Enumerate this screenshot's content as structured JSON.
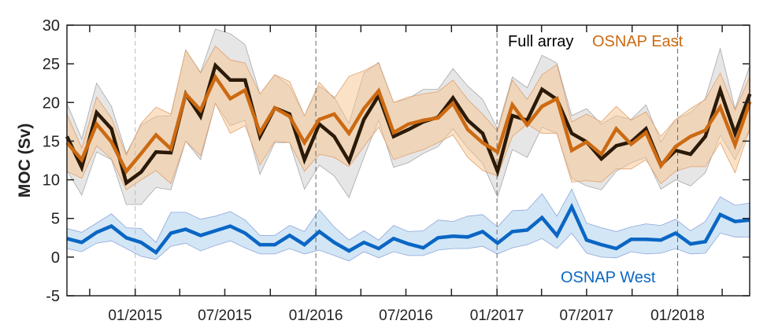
{
  "chart_data": {
    "type": "line",
    "title": "",
    "xlabel": "",
    "ylabel": "MOC (Sv)",
    "ylim": [
      -5,
      30
    ],
    "yticks": [
      "-5",
      "0",
      "5",
      "10",
      "15",
      "20",
      "25",
      "30"
    ],
    "xlim": [
      "2014-08-16",
      "2018-05-27"
    ],
    "xtick_labels": [
      "01/2015",
      "07/2015",
      "01/2016",
      "07/2016",
      "01/2017",
      "07/2017",
      "01/2018"
    ],
    "xtick_dates": [
      "2015-01-01",
      "2015-07-01",
      "2016-01-01",
      "2016-07-01",
      "2017-01-01",
      "2017-07-01",
      "2018-01-01"
    ],
    "minor_tick_interval_months": 3,
    "year_gridlines": "dashed vertical at each January",
    "grid": false,
    "x": [
      "2014-08-16",
      "2014-09-15",
      "2014-10-15",
      "2014-11-14",
      "2014-12-14",
      "2015-01-13",
      "2015-02-12",
      "2015-03-14",
      "2015-04-13",
      "2015-05-13",
      "2015-06-12",
      "2015-07-12",
      "2015-08-11",
      "2015-09-10",
      "2015-10-10",
      "2015-11-09",
      "2015-12-09",
      "2016-01-08",
      "2016-02-07",
      "2016-03-08",
      "2016-04-07",
      "2016-05-07",
      "2016-06-06",
      "2016-07-06",
      "2016-08-05",
      "2016-09-04",
      "2016-10-04",
      "2016-11-03",
      "2016-12-03",
      "2017-01-02",
      "2017-02-01",
      "2017-03-03",
      "2017-04-02",
      "2017-05-02",
      "2017-06-01",
      "2017-07-01",
      "2017-07-31",
      "2017-08-30",
      "2017-09-29",
      "2017-10-29",
      "2017-11-28",
      "2017-12-28",
      "2018-01-27",
      "2018-02-26",
      "2018-03-28",
      "2018-04-27",
      "2018-05-27"
    ],
    "series": [
      {
        "name": "Full array",
        "color": "#2b1a08",
        "band_color": "#d9d9d9",
        "values": [
          15.6,
          11.6,
          18.7,
          16.6,
          9.6,
          11.0,
          13.6,
          13.5,
          21.1,
          18.2,
          24.8,
          22.9,
          22.9,
          15.6,
          19.3,
          18.5,
          12.6,
          17.2,
          15.6,
          12.4,
          17.8,
          20.9,
          15.6,
          16.5,
          17.5,
          18.1,
          20.6,
          17.7,
          16.0,
          11.1,
          18.3,
          17.7,
          21.7,
          20.4,
          16.0,
          14.9,
          12.7,
          14.4,
          14.9,
          16.6,
          11.9,
          13.8,
          13.3,
          15.6,
          21.6,
          16.0,
          21.1
        ],
        "upper": [
          19.9,
          15.3,
          22.5,
          19.5,
          13.4,
          17.1,
          18.2,
          18.3,
          26.8,
          23.9,
          29.5,
          28.9,
          27.5,
          21.1,
          23.6,
          22.1,
          18.3,
          22.1,
          20.7,
          17.3,
          23.8,
          25.2,
          20.0,
          20.5,
          21.7,
          21.7,
          24.4,
          22.1,
          20.4,
          16.6,
          23.3,
          21.9,
          26.1,
          25.1,
          18.3,
          19.2,
          17.2,
          18.3,
          17.8,
          19.7,
          14.9,
          17.8,
          18.7,
          20.5,
          27.0,
          19.2,
          24.8
        ],
        "lower": [
          11.2,
          8.0,
          13.6,
          12.6,
          6.8,
          6.8,
          9.0,
          8.7,
          15.0,
          12.6,
          19.9,
          17.0,
          17.7,
          10.7,
          14.8,
          14.8,
          8.8,
          11.9,
          10.5,
          7.7,
          12.9,
          17.7,
          11.6,
          12.2,
          13.4,
          14.3,
          16.6,
          14.1,
          12.1,
          7.8,
          13.9,
          12.9,
          16.8,
          16.0,
          10.2,
          9.2,
          8.7,
          11.1,
          12.2,
          12.9,
          8.8,
          10.0,
          9.2,
          10.9,
          15.8,
          12.6,
          16.6
        ]
      },
      {
        "name": "OSNAP East",
        "color": "#cc6a12",
        "band_color": "#f8c690",
        "values": [
          14.8,
          12.6,
          17.2,
          14.9,
          11.1,
          13.4,
          15.8,
          14.0,
          21.1,
          19.0,
          23.3,
          20.5,
          21.6,
          16.1,
          19.3,
          18.2,
          14.8,
          17.8,
          18.5,
          16.0,
          19.2,
          21.5,
          16.1,
          17.2,
          17.7,
          18.0,
          19.9,
          16.5,
          14.8,
          13.6,
          19.7,
          17.1,
          19.5,
          20.5,
          13.8,
          14.9,
          13.3,
          16.6,
          14.6,
          16.1,
          11.8,
          14.3,
          15.6,
          16.4,
          19.4,
          14.5,
          20.1
        ],
        "upper": [
          18.5,
          14.1,
          20.7,
          18.0,
          13.2,
          17.3,
          19.4,
          18.5,
          26.8,
          23.8,
          27.3,
          25.5,
          25.1,
          21.1,
          23.6,
          22.7,
          18.3,
          22.6,
          20.5,
          23.4,
          24.1,
          25.1,
          20.0,
          20.7,
          21.1,
          21.4,
          22.9,
          20.4,
          18.5,
          16.3,
          22.9,
          20.4,
          23.6,
          24.9,
          17.5,
          18.5,
          17.5,
          19.5,
          17.7,
          18.8,
          15.6,
          17.8,
          19.2,
          20.4,
          23.8,
          19.0,
          23.4
        ],
        "lower": [
          11.1,
          10.2,
          14.4,
          12.7,
          8.7,
          10.0,
          11.2,
          9.5,
          15.0,
          13.1,
          19.9,
          16.0,
          17.0,
          11.9,
          15.0,
          14.8,
          11.1,
          13.3,
          12.9,
          11.7,
          14.3,
          16.8,
          12.6,
          13.3,
          13.9,
          14.8,
          15.8,
          12.9,
          11.2,
          10.5,
          15.6,
          17.2,
          16.0,
          16.0,
          9.7,
          9.9,
          9.7,
          11.4,
          11.4,
          12.6,
          9.5,
          11.1,
          11.7,
          11.7,
          14.8,
          10.9,
          16.6
        ]
      },
      {
        "name": "OSNAP West",
        "color": "#0a66c4",
        "band_color": "#a8cdee",
        "values": [
          2.4,
          1.9,
          3.2,
          4.0,
          2.5,
          1.9,
          0.6,
          3.1,
          3.6,
          2.8,
          3.4,
          4.0,
          3.1,
          1.6,
          1.6,
          2.8,
          1.6,
          3.3,
          1.9,
          0.8,
          1.9,
          1.1,
          2.4,
          1.7,
          1.2,
          2.5,
          2.7,
          2.6,
          3.3,
          1.8,
          3.3,
          3.5,
          5.1,
          2.8,
          6.5,
          2.2,
          1.6,
          1.1,
          2.3,
          2.3,
          2.2,
          3.1,
          1.7,
          2.0,
          5.5,
          4.6,
          4.8
        ],
        "upper": [
          3.7,
          3.2,
          4.4,
          5.6,
          3.8,
          3.7,
          1.9,
          5.8,
          5.8,
          4.9,
          5.3,
          5.9,
          4.8,
          2.8,
          2.8,
          4.1,
          3.3,
          6.1,
          3.9,
          2.2,
          3.4,
          2.2,
          4.1,
          3.3,
          3.4,
          4.8,
          4.6,
          5.3,
          5.5,
          3.9,
          6.0,
          6.1,
          8.2,
          5.3,
          8.8,
          4.4,
          3.8,
          3.3,
          3.9,
          4.3,
          4.1,
          4.9,
          3.4,
          4.6,
          7.8,
          6.7,
          7.0
        ],
        "lower": [
          1.1,
          0.7,
          1.8,
          2.1,
          1.1,
          0.1,
          -0.3,
          1.4,
          1.8,
          0.8,
          1.5,
          2.1,
          1.2,
          0.4,
          0.4,
          1.1,
          0.4,
          0.9,
          0.2,
          -0.5,
          0.7,
          -0.1,
          0.7,
          0.2,
          0.2,
          0.9,
          1.1,
          1.1,
          1.4,
          0.4,
          1.2,
          1.6,
          2.4,
          1.1,
          3.1,
          0.5,
          0.0,
          -0.1,
          0.7,
          0.4,
          0.5,
          1.1,
          0.4,
          0.5,
          3.1,
          2.6,
          2.6
        ]
      }
    ],
    "legend": {
      "placement": "in-plot labels (top-right for Full array / OSNAP East, bottom-center-right for OSNAP West)",
      "entries": [
        "Full array",
        "OSNAP East",
        "OSNAP West"
      ]
    }
  }
}
